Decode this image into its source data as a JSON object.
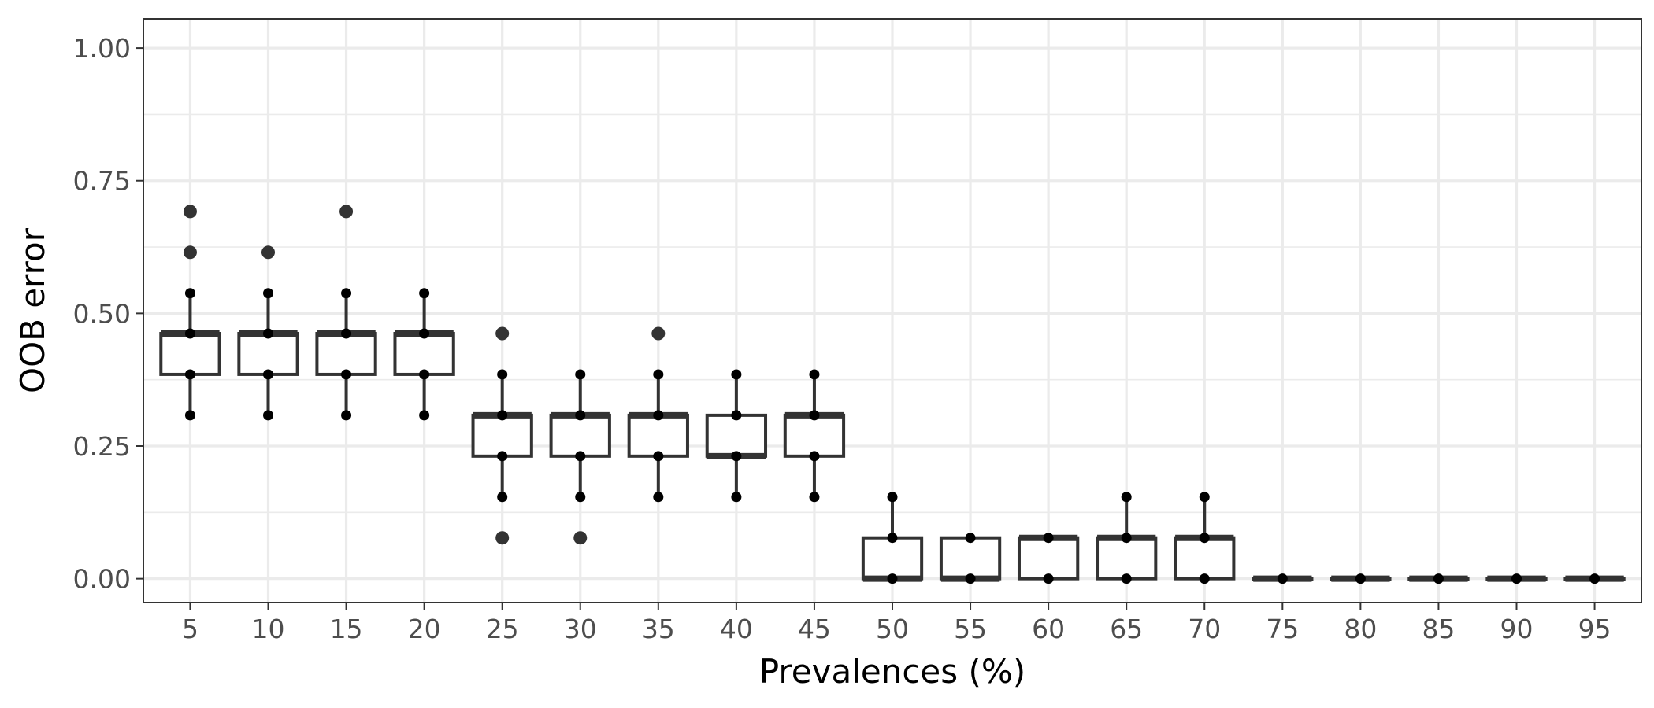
{
  "chart_data": {
    "type": "boxplot",
    "xlabel": "Prevalences (%)",
    "ylabel": "OOB error",
    "ylim": [
      -0.045,
      1.055
    ],
    "y_ticks": [
      "0.00",
      "0.25",
      "0.50",
      "0.75",
      "1.00"
    ],
    "y_tick_values": [
      0,
      0.25,
      0.5,
      0.75,
      1.0
    ],
    "categories": [
      "5",
      "10",
      "15",
      "20",
      "25",
      "30",
      "35",
      "40",
      "45",
      "50",
      "55",
      "60",
      "65",
      "70",
      "75",
      "80",
      "85",
      "90",
      "95"
    ],
    "grid": true,
    "colors": {
      "box_stroke": "#333333",
      "box_fill": "#ffffff",
      "points": "#000000",
      "grid": "#ebebeb"
    },
    "boxes": [
      {
        "category": "5",
        "lower_whisker": 0.308,
        "q1": 0.385,
        "median": 0.462,
        "q3": 0.462,
        "upper_whisker": 0.538,
        "outliers": [
          0.615,
          0.692
        ]
      },
      {
        "category": "10",
        "lower_whisker": 0.308,
        "q1": 0.385,
        "median": 0.462,
        "q3": 0.462,
        "upper_whisker": 0.538,
        "outliers": [
          0.615
        ]
      },
      {
        "category": "15",
        "lower_whisker": 0.308,
        "q1": 0.385,
        "median": 0.462,
        "q3": 0.462,
        "upper_whisker": 0.538,
        "outliers": [
          0.692
        ]
      },
      {
        "category": "20",
        "lower_whisker": 0.308,
        "q1": 0.385,
        "median": 0.462,
        "q3": 0.462,
        "upper_whisker": 0.538,
        "outliers": []
      },
      {
        "category": "25",
        "lower_whisker": 0.154,
        "q1": 0.231,
        "median": 0.308,
        "q3": 0.308,
        "upper_whisker": 0.385,
        "outliers": [
          0.077,
          0.462
        ]
      },
      {
        "category": "30",
        "lower_whisker": 0.154,
        "q1": 0.231,
        "median": 0.308,
        "q3": 0.308,
        "upper_whisker": 0.385,
        "outliers": [
          0.077
        ]
      },
      {
        "category": "35",
        "lower_whisker": 0.154,
        "q1": 0.231,
        "median": 0.308,
        "q3": 0.308,
        "upper_whisker": 0.385,
        "outliers": [
          0.462
        ]
      },
      {
        "category": "40",
        "lower_whisker": 0.154,
        "q1": 0.231,
        "median": 0.231,
        "q3": 0.308,
        "upper_whisker": 0.385,
        "outliers": []
      },
      {
        "category": "45",
        "lower_whisker": 0.154,
        "q1": 0.231,
        "median": 0.308,
        "q3": 0.308,
        "upper_whisker": 0.385,
        "outliers": []
      },
      {
        "category": "50",
        "lower_whisker": 0.0,
        "q1": 0.0,
        "median": 0.0,
        "q3": 0.077,
        "upper_whisker": 0.154,
        "outliers": []
      },
      {
        "category": "55",
        "lower_whisker": 0.0,
        "q1": 0.0,
        "median": 0.0,
        "q3": 0.077,
        "upper_whisker": 0.077,
        "outliers": []
      },
      {
        "category": "60",
        "lower_whisker": 0.0,
        "q1": 0.0,
        "median": 0.077,
        "q3": 0.077,
        "upper_whisker": 0.077,
        "outliers": []
      },
      {
        "category": "65",
        "lower_whisker": 0.0,
        "q1": 0.0,
        "median": 0.077,
        "q3": 0.077,
        "upper_whisker": 0.154,
        "outliers": []
      },
      {
        "category": "70",
        "lower_whisker": 0.0,
        "q1": 0.0,
        "median": 0.077,
        "q3": 0.077,
        "upper_whisker": 0.154,
        "outliers": []
      },
      {
        "category": "75",
        "lower_whisker": 0.0,
        "q1": 0.0,
        "median": 0.0,
        "q3": 0.0,
        "upper_whisker": 0.0,
        "outliers": []
      },
      {
        "category": "80",
        "lower_whisker": 0.0,
        "q1": 0.0,
        "median": 0.0,
        "q3": 0.0,
        "upper_whisker": 0.0,
        "outliers": []
      },
      {
        "category": "85",
        "lower_whisker": 0.0,
        "q1": 0.0,
        "median": 0.0,
        "q3": 0.0,
        "upper_whisker": 0.0,
        "outliers": []
      },
      {
        "category": "90",
        "lower_whisker": 0.0,
        "q1": 0.0,
        "median": 0.0,
        "q3": 0.0,
        "upper_whisker": 0.0,
        "outliers": []
      },
      {
        "category": "95",
        "lower_whisker": 0.0,
        "q1": 0.0,
        "median": 0.0,
        "q3": 0.0,
        "upper_whisker": 0.0,
        "outliers": []
      }
    ],
    "points": [
      {
        "category": "5",
        "values": [
          0.308,
          0.385,
          0.462,
          0.538
        ]
      },
      {
        "category": "10",
        "values": [
          0.308,
          0.385,
          0.462,
          0.538
        ]
      },
      {
        "category": "15",
        "values": [
          0.308,
          0.385,
          0.462,
          0.538
        ]
      },
      {
        "category": "20",
        "values": [
          0.308,
          0.385,
          0.462,
          0.538
        ]
      },
      {
        "category": "25",
        "values": [
          0.154,
          0.231,
          0.308,
          0.385
        ]
      },
      {
        "category": "30",
        "values": [
          0.154,
          0.231,
          0.308,
          0.385
        ]
      },
      {
        "category": "35",
        "values": [
          0.154,
          0.231,
          0.308,
          0.385
        ]
      },
      {
        "category": "40",
        "values": [
          0.154,
          0.231,
          0.308,
          0.385
        ]
      },
      {
        "category": "45",
        "values": [
          0.154,
          0.231,
          0.308,
          0.385
        ]
      },
      {
        "category": "50",
        "values": [
          0.0,
          0.077,
          0.154
        ]
      },
      {
        "category": "55",
        "values": [
          0.0,
          0.077
        ]
      },
      {
        "category": "60",
        "values": [
          0.0,
          0.077
        ]
      },
      {
        "category": "65",
        "values": [
          0.0,
          0.077,
          0.154
        ]
      },
      {
        "category": "70",
        "values": [
          0.0,
          0.077,
          0.154
        ]
      },
      {
        "category": "75",
        "values": [
          0.0
        ]
      },
      {
        "category": "80",
        "values": [
          0.0
        ]
      },
      {
        "category": "85",
        "values": [
          0.0
        ]
      },
      {
        "category": "90",
        "values": [
          0.0
        ]
      },
      {
        "category": "95",
        "values": [
          0.0
        ]
      }
    ]
  }
}
